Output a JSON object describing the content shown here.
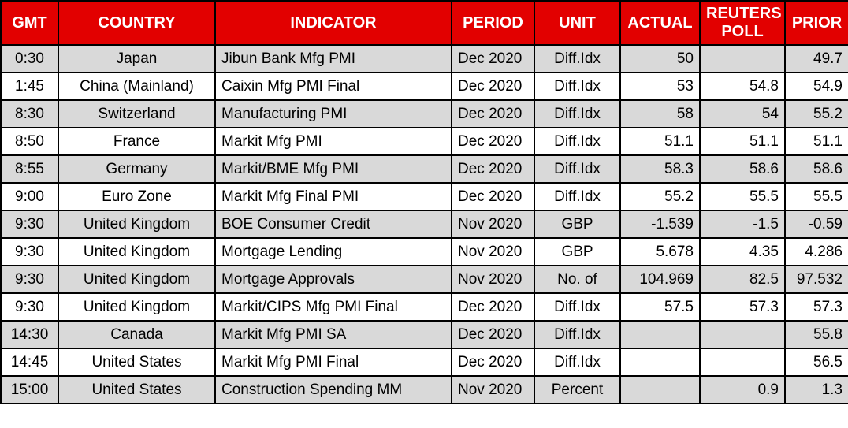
{
  "colors": {
    "header_bg": "#e20000",
    "header_text": "#ffffff",
    "row_alt_bg": "#d9d9d9",
    "row_bg": "#ffffff",
    "border": "#000000"
  },
  "chart_data": {
    "type": "table",
    "columns": [
      "GMT",
      "COUNTRY",
      "INDICATOR",
      "PERIOD",
      "UNIT",
      "ACTUAL",
      "REUTERS POLL",
      "PRIOR"
    ],
    "rows": [
      [
        "0:30",
        "Japan",
        "Jibun Bank Mfg PMI",
        "Dec 2020",
        "Diff.Idx",
        "50",
        "",
        "49.7"
      ],
      [
        "1:45",
        "China (Mainland)",
        "Caixin Mfg PMI Final",
        "Dec 2020",
        "Diff.Idx",
        "53",
        "54.8",
        "54.9"
      ],
      [
        "8:30",
        "Switzerland",
        "Manufacturing PMI",
        "Dec 2020",
        "Diff.Idx",
        "58",
        "54",
        "55.2"
      ],
      [
        "8:50",
        "France",
        "Markit Mfg PMI",
        "Dec 2020",
        "Diff.Idx",
        "51.1",
        "51.1",
        "51.1"
      ],
      [
        "8:55",
        "Germany",
        "Markit/BME Mfg PMI",
        "Dec 2020",
        "Diff.Idx",
        "58.3",
        "58.6",
        "58.6"
      ],
      [
        "9:00",
        "Euro Zone",
        "Markit Mfg Final PMI",
        "Dec 2020",
        "Diff.Idx",
        "55.2",
        "55.5",
        "55.5"
      ],
      [
        "9:30",
        "United Kingdom",
        "BOE Consumer Credit",
        "Nov 2020",
        "GBP",
        "-1.539",
        "-1.5",
        "-0.59"
      ],
      [
        "9:30",
        "United Kingdom",
        "Mortgage Lending",
        "Nov 2020",
        "GBP",
        "5.678",
        "4.35",
        "4.286"
      ],
      [
        "9:30",
        "United Kingdom",
        "Mortgage Approvals",
        "Nov 2020",
        "No. of",
        "104.969",
        "82.5",
        "97.532"
      ],
      [
        "9:30",
        "United Kingdom",
        "Markit/CIPS Mfg PMI Final",
        "Dec 2020",
        "Diff.Idx",
        "57.5",
        "57.3",
        "57.3"
      ],
      [
        "14:30",
        "Canada",
        "Markit Mfg PMI SA",
        "Dec 2020",
        "Diff.Idx",
        "",
        "",
        "55.8"
      ],
      [
        "14:45",
        "United States",
        "Markit Mfg PMI Final",
        "Dec 2020",
        "Diff.Idx",
        "",
        "",
        "56.5"
      ],
      [
        "15:00",
        "United States",
        "Construction Spending MM",
        "Nov 2020",
        "Percent",
        "",
        "0.9",
        "1.3"
      ]
    ]
  }
}
